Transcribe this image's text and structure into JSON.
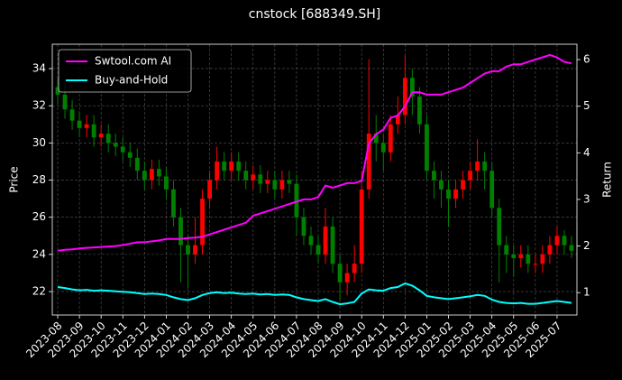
{
  "chart_data": {
    "type": "candlestick",
    "title": "cnstock [688349.SH]",
    "ylabel": "Price",
    "y2label": "Return",
    "categories": [
      "2023-08",
      null,
      null,
      "2023-09",
      null,
      null,
      "2023-10",
      null,
      null,
      "2023-11",
      null,
      null,
      "2023-12",
      null,
      null,
      "2024-01",
      null,
      null,
      "2024-02",
      null,
      null,
      "2024-03",
      null,
      null,
      "2024-04",
      null,
      null,
      "2024-05",
      null,
      null,
      "2024-06",
      null,
      null,
      "2024-07",
      null,
      null,
      "2024-08",
      null,
      null,
      "2024-09",
      null,
      null,
      "2024-10",
      null,
      null,
      "2024-11",
      null,
      null,
      "2024-12",
      null,
      null,
      "2025-01",
      null,
      null,
      "2025-02",
      null,
      null,
      "2025-03",
      null,
      null,
      "2025-04",
      null,
      null,
      "2025-05",
      null,
      null,
      "2025-06",
      null,
      null,
      "2025-07",
      null,
      null
    ],
    "candles": {
      "open": [
        33.0,
        32.6,
        31.8,
        31.2,
        30.8,
        31.0,
        30.3,
        30.5,
        30.0,
        29.8,
        29.5,
        29.2,
        28.5,
        28.0,
        28.6,
        28.2,
        27.5,
        26.0,
        24.5,
        24.0,
        24.5,
        27.0,
        28.0,
        29.0,
        28.5,
        29.0,
        28.5,
        28.0,
        28.3,
        27.8,
        28.0,
        27.5,
        28.0,
        27.8,
        26.0,
        25.0,
        24.5,
        24.0,
        25.5,
        23.5,
        22.5,
        23.0,
        23.5,
        27.5,
        30.5,
        30.0,
        29.5,
        31.0,
        31.5,
        33.5,
        32.5,
        31.0,
        28.5,
        28.0,
        27.5,
        27.0,
        27.5,
        28.0,
        28.5,
        29.0,
        28.5,
        26.5,
        24.5,
        24.0,
        23.8,
        24.0,
        23.5,
        23.5,
        24.0,
        24.5,
        25.0,
        24.5
      ],
      "high": [
        33.5,
        33.1,
        32.3,
        31.7,
        31.5,
        31.5,
        31.0,
        31.0,
        30.5,
        30.3,
        30.0,
        29.7,
        29.0,
        29.1,
        29.1,
        28.7,
        28.0,
        26.5,
        25.0,
        26.0,
        27.5,
        28.5,
        29.8,
        29.5,
        29.5,
        29.5,
        29.0,
        28.8,
        28.8,
        28.5,
        28.5,
        28.5,
        28.5,
        28.3,
        26.5,
        25.5,
        25.0,
        26.5,
        26.0,
        24.0,
        23.5,
        24.5,
        28.5,
        34.5,
        31.5,
        30.5,
        31.5,
        32.5,
        34.7,
        34.0,
        33.0,
        31.5,
        29.0,
        28.5,
        28.0,
        28.0,
        28.5,
        29.0,
        30.2,
        29.5,
        29.0,
        27.0,
        25.0,
        24.5,
        24.5,
        24.5,
        24.0,
        24.5,
        25.0,
        25.5,
        25.3,
        25.0
      ],
      "low": [
        32.1,
        31.3,
        30.7,
        30.3,
        30.3,
        29.8,
        29.8,
        29.5,
        29.3,
        29.0,
        28.7,
        28.0,
        27.5,
        27.5,
        27.7,
        27.0,
        25.5,
        22.5,
        22.2,
        23.5,
        24.0,
        26.5,
        27.5,
        28.0,
        28.0,
        28.0,
        27.5,
        27.5,
        27.3,
        27.3,
        27.0,
        27.0,
        27.3,
        25.0,
        24.5,
        24.0,
        23.5,
        23.5,
        23.0,
        21.5,
        21.8,
        22.5,
        23.0,
        27.0,
        29.0,
        28.5,
        29.0,
        30.5,
        31.0,
        31.5,
        30.5,
        28.0,
        27.0,
        26.5,
        25.5,
        26.5,
        27.0,
        27.5,
        28.0,
        27.5,
        26.0,
        22.5,
        23.0,
        22.8,
        23.3,
        23.0,
        23.0,
        23.0,
        23.5,
        24.0,
        24.0,
        23.8
      ],
      "close": [
        32.6,
        31.8,
        31.2,
        30.8,
        31.0,
        30.3,
        30.5,
        30.0,
        29.8,
        29.5,
        29.2,
        28.5,
        28.0,
        28.6,
        28.2,
        27.5,
        26.0,
        24.5,
        24.0,
        24.5,
        27.0,
        28.0,
        29.0,
        28.5,
        29.0,
        28.5,
        28.0,
        28.3,
        27.8,
        28.0,
        27.5,
        28.0,
        27.8,
        26.0,
        25.0,
        24.5,
        24.0,
        25.5,
        23.5,
        22.5,
        23.0,
        23.5,
        27.5,
        30.5,
        30.0,
        29.5,
        31.0,
        31.5,
        33.5,
        32.5,
        31.0,
        28.5,
        28.0,
        27.5,
        27.0,
        27.5,
        28.0,
        28.5,
        29.0,
        28.5,
        26.5,
        24.5,
        24.0,
        23.8,
        24.0,
        23.5,
        23.5,
        24.0,
        24.5,
        25.0,
        24.5,
        24.2
      ]
    },
    "up_color": "#ff0000",
    "down_color": "#008000",
    "series": [
      {
        "name": "Swtool.com AI",
        "color": "#ff00ff",
        "axis": "y2",
        "values": [
          1.9,
          1.92,
          1.93,
          1.95,
          1.96,
          1.97,
          1.98,
          1.99,
          2.0,
          2.02,
          2.05,
          2.08,
          2.08,
          2.1,
          2.12,
          2.15,
          2.15,
          2.15,
          2.17,
          2.18,
          2.2,
          2.25,
          2.3,
          2.35,
          2.4,
          2.45,
          2.5,
          2.65,
          2.7,
          2.75,
          2.8,
          2.85,
          2.9,
          2.95,
          3.0,
          3.0,
          3.05,
          3.3,
          3.25,
          3.3,
          3.35,
          3.35,
          3.4,
          4.2,
          4.4,
          4.5,
          4.75,
          4.8,
          5.0,
          5.3,
          5.3,
          5.25,
          5.25,
          5.25,
          5.3,
          5.35,
          5.4,
          5.5,
          5.6,
          5.7,
          5.75,
          5.75,
          5.85,
          5.9,
          5.9,
          5.95,
          6.0,
          6.05,
          6.1,
          6.05,
          5.95,
          5.92
        ]
      },
      {
        "name": "Buy-and-Hold",
        "color": "#00ffff",
        "axis": "y2",
        "values": [
          1.12,
          1.1,
          1.07,
          1.05,
          1.06,
          1.04,
          1.05,
          1.04,
          1.03,
          1.02,
          1.01,
          0.99,
          0.97,
          0.98,
          0.97,
          0.95,
          0.9,
          0.86,
          0.84,
          0.88,
          0.95,
          0.99,
          1.01,
          0.99,
          1.0,
          0.98,
          0.97,
          0.98,
          0.96,
          0.97,
          0.95,
          0.96,
          0.95,
          0.9,
          0.86,
          0.84,
          0.82,
          0.86,
          0.8,
          0.75,
          0.77,
          0.8,
          0.98,
          1.07,
          1.05,
          1.04,
          1.1,
          1.12,
          1.2,
          1.15,
          1.05,
          0.93,
          0.9,
          0.88,
          0.86,
          0.88,
          0.9,
          0.92,
          0.95,
          0.93,
          0.85,
          0.8,
          0.78,
          0.77,
          0.78,
          0.76,
          0.76,
          0.78,
          0.8,
          0.82,
          0.8,
          0.78
        ]
      }
    ],
    "ylim": [
      20.74,
      35.31
    ],
    "yticks": [
      22,
      24,
      26,
      28,
      30,
      32,
      34
    ],
    "y2lim": [
      0.52,
      6.33
    ],
    "y2ticks": [
      1,
      2,
      3,
      4,
      5,
      6
    ],
    "grid": true,
    "legend": "upper left"
  }
}
